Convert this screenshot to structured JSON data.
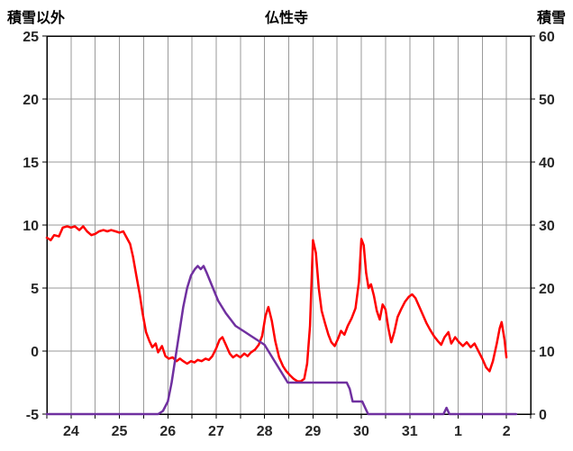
{
  "title": "仏性寺",
  "left_axis_title": "積雪以外",
  "right_axis_title": "積雪",
  "colors": {
    "other_series": "#FF0000",
    "snow_series": "#7030A0",
    "grid": "#9a9a9a",
    "axis_frame": "#000000",
    "tick_text": "#262626",
    "background": "#ffffff"
  },
  "chart_data": {
    "type": "line",
    "title": "仏性寺",
    "x_categories": [
      "24",
      "25",
      "26",
      "27",
      "28",
      "29",
      "30",
      "31",
      "1",
      "2"
    ],
    "left_axis": {
      "label": "積雪以外",
      "min": -5,
      "max": 25,
      "ticks": [
        -5,
        0,
        5,
        10,
        15,
        20,
        25
      ]
    },
    "right_axis": {
      "label": "積雪",
      "min": 0,
      "max": 60,
      "ticks": [
        0,
        10,
        20,
        30,
        40,
        50,
        60
      ]
    },
    "x_gridline_step_days": 0.5,
    "grid": true,
    "legend": "none",
    "series": [
      {
        "key": "other",
        "name": "積雪以外",
        "axis": "left",
        "color": "#FF0000",
        "points": [
          [
            0.0,
            9.0
          ],
          [
            0.08,
            8.8
          ],
          [
            0.15,
            9.2
          ],
          [
            0.25,
            9.1
          ],
          [
            0.33,
            9.8
          ],
          [
            0.42,
            9.9
          ],
          [
            0.5,
            9.8
          ],
          [
            0.58,
            9.9
          ],
          [
            0.67,
            9.6
          ],
          [
            0.75,
            9.9
          ],
          [
            0.83,
            9.5
          ],
          [
            0.92,
            9.2
          ],
          [
            1.0,
            9.3
          ],
          [
            1.08,
            9.5
          ],
          [
            1.17,
            9.6
          ],
          [
            1.25,
            9.5
          ],
          [
            1.33,
            9.6
          ],
          [
            1.42,
            9.5
          ],
          [
            1.5,
            9.4
          ],
          [
            1.58,
            9.5
          ],
          [
            1.65,
            9.0
          ],
          [
            1.72,
            8.5
          ],
          [
            1.78,
            7.5
          ],
          [
            1.85,
            6.0
          ],
          [
            1.92,
            4.5
          ],
          [
            1.98,
            3.0
          ],
          [
            2.05,
            1.5
          ],
          [
            2.12,
            0.8
          ],
          [
            2.18,
            0.3
          ],
          [
            2.25,
            0.6
          ],
          [
            2.3,
            -0.1
          ],
          [
            2.38,
            0.4
          ],
          [
            2.45,
            -0.4
          ],
          [
            2.52,
            -0.6
          ],
          [
            2.6,
            -0.5
          ],
          [
            2.68,
            -0.8
          ],
          [
            2.75,
            -0.6
          ],
          [
            2.82,
            -0.8
          ],
          [
            2.9,
            -1.0
          ],
          [
            2.98,
            -0.8
          ],
          [
            3.05,
            -0.9
          ],
          [
            3.12,
            -0.7
          ],
          [
            3.2,
            -0.8
          ],
          [
            3.28,
            -0.6
          ],
          [
            3.35,
            -0.7
          ],
          [
            3.42,
            -0.4
          ],
          [
            3.5,
            0.2
          ],
          [
            3.57,
            0.9
          ],
          [
            3.63,
            1.1
          ],
          [
            3.7,
            0.5
          ],
          [
            3.78,
            -0.2
          ],
          [
            3.85,
            -0.5
          ],
          [
            3.92,
            -0.3
          ],
          [
            4.0,
            -0.5
          ],
          [
            4.08,
            -0.2
          ],
          [
            4.15,
            -0.4
          ],
          [
            4.22,
            -0.1
          ],
          [
            4.3,
            0.1
          ],
          [
            4.38,
            0.5
          ],
          [
            4.45,
            1.2
          ],
          [
            4.52,
            2.8
          ],
          [
            4.58,
            3.5
          ],
          [
            4.65,
            2.4
          ],
          [
            4.72,
            0.8
          ],
          [
            4.8,
            -0.5
          ],
          [
            4.88,
            -1.2
          ],
          [
            4.95,
            -1.6
          ],
          [
            5.02,
            -1.9
          ],
          [
            5.1,
            -2.2
          ],
          [
            5.18,
            -2.4
          ],
          [
            5.25,
            -2.4
          ],
          [
            5.32,
            -2.2
          ],
          [
            5.38,
            -1.0
          ],
          [
            5.44,
            2.0
          ],
          [
            5.5,
            8.8
          ],
          [
            5.56,
            7.8
          ],
          [
            5.62,
            5.0
          ],
          [
            5.68,
            3.2
          ],
          [
            5.75,
            2.2
          ],
          [
            5.82,
            1.3
          ],
          [
            5.88,
            0.7
          ],
          [
            5.95,
            0.4
          ],
          [
            6.02,
            1.0
          ],
          [
            6.08,
            1.6
          ],
          [
            6.15,
            1.3
          ],
          [
            6.22,
            2.0
          ],
          [
            6.3,
            2.6
          ],
          [
            6.38,
            3.4
          ],
          [
            6.45,
            5.5
          ],
          [
            6.5,
            8.9
          ],
          [
            6.55,
            8.4
          ],
          [
            6.6,
            6.2
          ],
          [
            6.65,
            5.0
          ],
          [
            6.7,
            5.3
          ],
          [
            6.76,
            4.4
          ],
          [
            6.82,
            3.2
          ],
          [
            6.88,
            2.5
          ],
          [
            6.94,
            3.7
          ],
          [
            7.0,
            3.3
          ],
          [
            7.06,
            1.8
          ],
          [
            7.12,
            0.7
          ],
          [
            7.18,
            1.5
          ],
          [
            7.25,
            2.7
          ],
          [
            7.32,
            3.3
          ],
          [
            7.4,
            3.9
          ],
          [
            7.48,
            4.3
          ],
          [
            7.55,
            4.5
          ],
          [
            7.62,
            4.2
          ],
          [
            7.7,
            3.5
          ],
          [
            7.78,
            2.8
          ],
          [
            7.85,
            2.2
          ],
          [
            7.92,
            1.7
          ],
          [
            8.0,
            1.2
          ],
          [
            8.08,
            0.8
          ],
          [
            8.15,
            0.5
          ],
          [
            8.22,
            1.1
          ],
          [
            8.3,
            1.5
          ],
          [
            8.36,
            0.6
          ],
          [
            8.44,
            1.1
          ],
          [
            8.52,
            0.7
          ],
          [
            8.6,
            0.4
          ],
          [
            8.68,
            0.7
          ],
          [
            8.76,
            0.3
          ],
          [
            8.84,
            0.6
          ],
          [
            8.92,
            0.0
          ],
          [
            9.0,
            -0.6
          ],
          [
            9.08,
            -1.3
          ],
          [
            9.15,
            -1.6
          ],
          [
            9.22,
            -0.8
          ],
          [
            9.3,
            0.6
          ],
          [
            9.36,
            1.8
          ],
          [
            9.4,
            2.3
          ],
          [
            9.46,
            0.9
          ],
          [
            9.5,
            -0.5
          ]
        ]
      },
      {
        "key": "snow",
        "name": "積雪",
        "axis": "right",
        "color": "#7030A0",
        "points": [
          [
            0.0,
            0
          ],
          [
            1.0,
            0
          ],
          [
            1.8,
            0
          ],
          [
            2.3,
            0
          ],
          [
            2.4,
            0.5
          ],
          [
            2.5,
            2
          ],
          [
            2.58,
            5
          ],
          [
            2.66,
            9
          ],
          [
            2.74,
            13
          ],
          [
            2.82,
            17
          ],
          [
            2.9,
            20
          ],
          [
            2.98,
            22
          ],
          [
            3.06,
            23
          ],
          [
            3.12,
            23.5
          ],
          [
            3.18,
            23
          ],
          [
            3.24,
            23.5
          ],
          [
            3.3,
            22.5
          ],
          [
            3.38,
            21
          ],
          [
            3.46,
            19.5
          ],
          [
            3.54,
            18
          ],
          [
            3.62,
            17
          ],
          [
            3.7,
            16
          ],
          [
            3.8,
            15
          ],
          [
            3.9,
            14
          ],
          [
            4.0,
            13.5
          ],
          [
            4.1,
            13
          ],
          [
            4.2,
            12.5
          ],
          [
            4.3,
            12
          ],
          [
            4.4,
            11.5
          ],
          [
            4.5,
            11
          ],
          [
            4.58,
            10
          ],
          [
            4.66,
            9
          ],
          [
            4.74,
            8
          ],
          [
            4.82,
            7
          ],
          [
            4.9,
            6
          ],
          [
            4.98,
            5
          ],
          [
            5.2,
            5
          ],
          [
            5.6,
            5
          ],
          [
            6.0,
            5
          ],
          [
            6.2,
            5
          ],
          [
            6.26,
            4
          ],
          [
            6.32,
            2
          ],
          [
            6.42,
            2
          ],
          [
            6.52,
            2
          ],
          [
            6.58,
            1
          ],
          [
            6.64,
            0
          ],
          [
            7.0,
            0
          ],
          [
            8.2,
            0
          ],
          [
            8.26,
            1
          ],
          [
            8.32,
            0
          ],
          [
            9.7,
            0
          ]
        ]
      }
    ]
  }
}
